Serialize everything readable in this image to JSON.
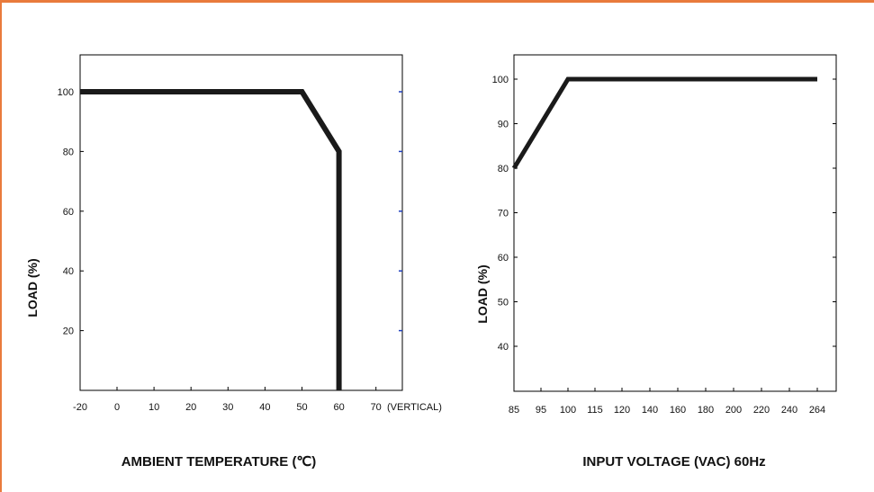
{
  "colors": {
    "frame": "#e97b3c",
    "curve": "#1a1a1a",
    "axis": "#000000",
    "right_ticks": "#1f3fbf"
  },
  "chart_data": [
    {
      "type": "line",
      "title": "",
      "xlabel": "AMBIENT TEMPERATURE (℃)",
      "ylabel": "LOAD (%)",
      "xlim": [
        -20,
        70
      ],
      "ylim": [
        0,
        110
      ],
      "x_ticks": [
        -20,
        0,
        10,
        20,
        30,
        40,
        50,
        60,
        70
      ],
      "x_tick_labels": [
        "-20",
        "0",
        "10",
        "20",
        "30",
        "40",
        "50",
        "60",
        "70"
      ],
      "x_extra_label": "(VERTICAL)",
      "y_ticks": [
        20,
        40,
        60,
        80,
        100
      ],
      "y_tick_labels": [
        "20",
        "40",
        "60",
        "80",
        "100"
      ],
      "grid": false,
      "series": [
        {
          "x": [
            -20,
            50,
            60,
            60
          ],
          "y": [
            100,
            100,
            80,
            0
          ]
        }
      ]
    },
    {
      "type": "line",
      "title": "",
      "xlabel": "INPUT VOLTAGE (VAC) 60Hz",
      "ylabel": "LOAD (%)",
      "ylim": [
        30,
        103
      ],
      "x_tick_labels": [
        "85",
        "95",
        "100",
        "115",
        "120",
        "140",
        "160",
        "180",
        "200",
        "220",
        "240",
        "264"
      ],
      "y_ticks": [
        40,
        50,
        60,
        70,
        80,
        90,
        100
      ],
      "y_tick_labels": [
        "40",
        "50",
        "60",
        "70",
        "80",
        "90",
        "100"
      ],
      "grid": false,
      "series": [
        {
          "x": [
            85,
            100,
            264
          ],
          "y": [
            80,
            100,
            100
          ]
        }
      ]
    }
  ]
}
